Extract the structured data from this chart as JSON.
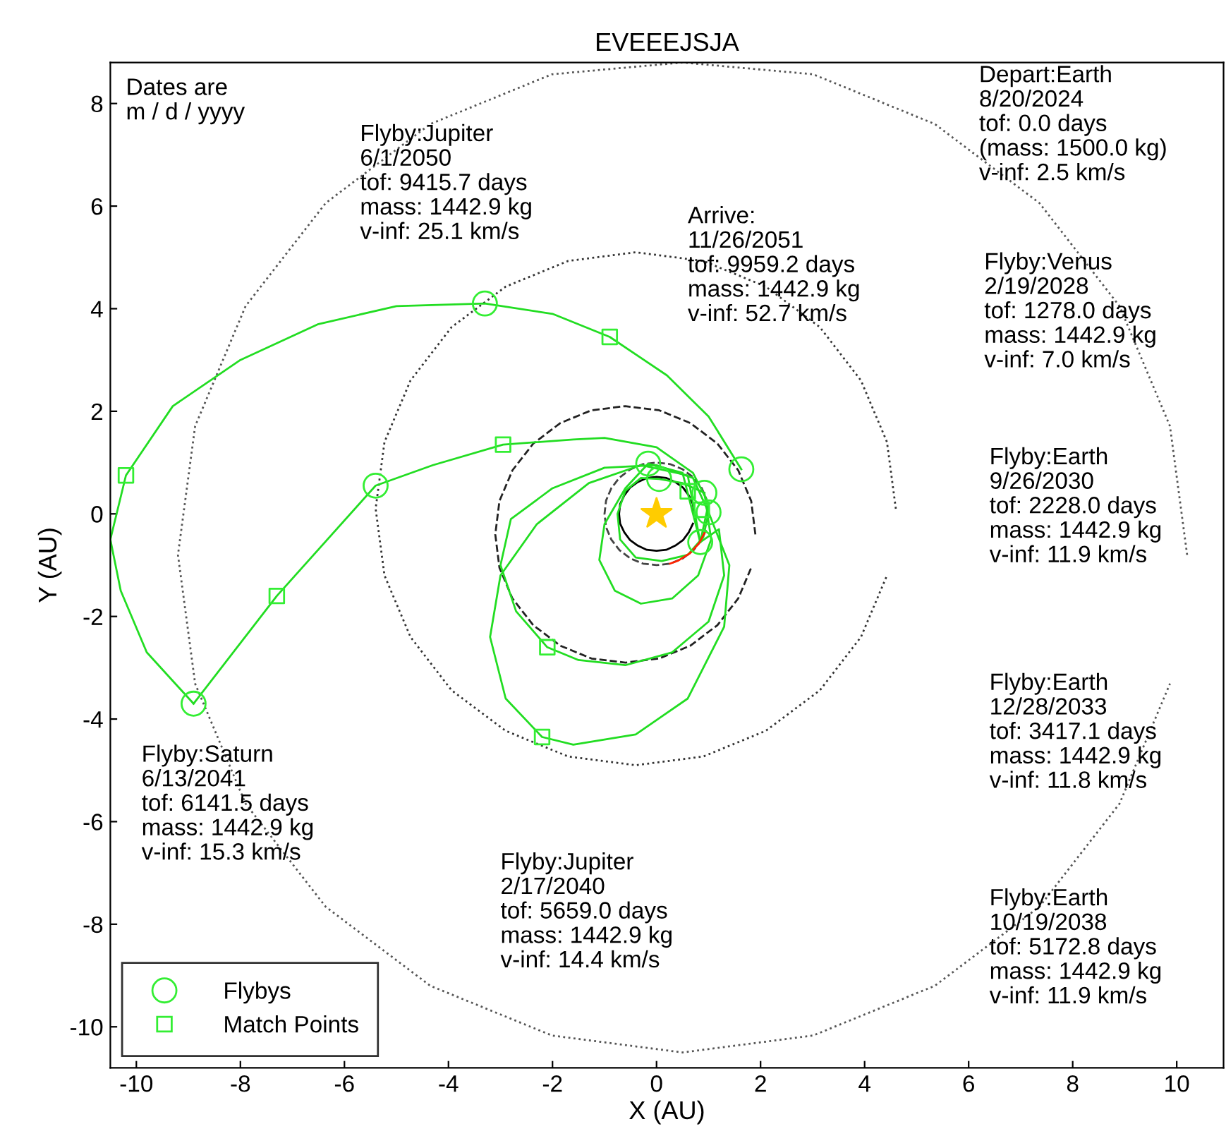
{
  "chart_data": {
    "type": "line",
    "title": "EVEEEJSJA",
    "xlabel": "X (AU)",
    "ylabel": "Y (AU)",
    "xlim": [
      -10.5,
      10.9
    ],
    "ylim": [
      -10.8,
      8.8
    ],
    "xticks": [
      -10,
      -8,
      -6,
      -4,
      -2,
      0,
      2,
      4,
      6,
      8,
      10
    ],
    "yticks": [
      -10,
      -8,
      -6,
      -4,
      -2,
      0,
      2,
      4,
      6,
      8
    ],
    "grid": false,
    "legend": "bottom left",
    "series": [
      {
        "color": "#555555",
        "line_style": "dotted",
        "x": [
          10.2,
          9.87,
          8.9,
          7.36,
          5.35,
          3.01,
          0.5,
          -2.01,
          -4.35,
          -6.36,
          -7.9,
          -8.87,
          -9.2,
          -8.87,
          -7.9,
          -6.36,
          -4.35,
          -2.01,
          0.5,
          3.01,
          5.35,
          7.36,
          8.9,
          9.87
        ],
        "values": [
          -0.8,
          1.71,
          4.05,
          6.06,
          7.6,
          8.57,
          8.8,
          8.57,
          7.6,
          6.06,
          4.05,
          1.71,
          -0.8,
          -3.31,
          -5.65,
          -7.66,
          -9.2,
          -10.17,
          -10.5,
          -10.17,
          -9.2,
          -7.66,
          -5.65,
          -3.31
        ]
      },
      {
        "color": "#333333",
        "line_style": "dotted",
        "x": [
          4.6,
          4.43,
          3.93,
          3.14,
          2.1,
          0.9,
          -0.4,
          -1.7,
          -2.9,
          -3.94,
          -4.73,
          -5.23,
          -5.4,
          -5.23,
          -4.73,
          -3.94,
          -2.9,
          -1.7,
          -0.4,
          0.9,
          2.1,
          3.14,
          3.93,
          4.43
        ],
        "values": [
          0.1,
          1.4,
          2.6,
          3.64,
          4.43,
          4.93,
          5.1,
          4.93,
          4.43,
          3.64,
          2.6,
          1.4,
          0.1,
          -1.2,
          -2.4,
          -3.44,
          -4.23,
          -4.73,
          -4.9,
          -4.73,
          -4.23,
          -3.44,
          -2.4,
          -1.2
        ]
      },
      {
        "color": "#222222",
        "line_style": "dashed",
        "x": [
          1.9,
          1.82,
          1.57,
          1.17,
          0.65,
          0.05,
          -0.6,
          -1.25,
          -1.85,
          -2.37,
          -2.77,
          -3.02,
          -3.1,
          -3.02,
          -2.77,
          -2.37,
          -1.85,
          -1.25,
          -0.6,
          0.05,
          0.65,
          1.17,
          1.57,
          1.82
        ],
        "values": [
          -0.4,
          0.25,
          0.85,
          1.37,
          1.77,
          2.02,
          2.1,
          2.02,
          1.77,
          1.37,
          0.85,
          0.25,
          -0.4,
          -1.05,
          -1.65,
          -2.17,
          -2.57,
          -2.82,
          -2.9,
          -2.82,
          -2.57,
          -2.17,
          -1.65,
          -1.05
        ]
      },
      {
        "color": "#444444",
        "line_style": "dashed",
        "x": [
          1,
          0.97,
          0.87,
          0.71,
          0.5,
          0.26,
          0,
          -0.26,
          -0.5,
          -0.71,
          -0.87,
          -0.97,
          -1,
          -0.97,
          -0.87,
          -0.71,
          -0.5,
          -0.26,
          0,
          0.26,
          0.5,
          0.71,
          0.87,
          0.97
        ],
        "values": [
          0,
          0.26,
          0.5,
          0.71,
          0.87,
          0.97,
          1,
          0.97,
          0.87,
          0.71,
          0.5,
          0.26,
          0,
          -0.26,
          -0.5,
          -0.71,
          -0.87,
          -0.97,
          -1,
          -0.97,
          -0.87,
          -0.71,
          -0.5,
          -0.26
        ]
      },
      {
        "color": "#000000",
        "line_style": "solid",
        "x": [
          0.72,
          0.7,
          0.62,
          0.51,
          0.36,
          0.19,
          0,
          -0.19,
          -0.36,
          -0.51,
          -0.62,
          -0.7,
          -0.72,
          -0.7,
          -0.62,
          -0.51,
          -0.36,
          -0.19,
          0,
          0.19,
          0.36,
          0.51,
          0.62,
          0.7
        ],
        "values": [
          0,
          0.19,
          0.36,
          0.51,
          0.62,
          0.7,
          0.72,
          0.7,
          0.62,
          0.51,
          0.36,
          0.19,
          0,
          -0.19,
          -0.36,
          -0.51,
          -0.62,
          -0.7,
          -0.72,
          -0.7,
          -0.62,
          -0.51,
          -0.36,
          -0.19
        ]
      },
      {
        "color": "#22dd22",
        "line_style": "solid",
        "x": [
          1.0,
          0.9,
          0.6,
          0.1,
          -0.4,
          -0.7,
          -0.75,
          -0.6,
          -0.3,
          0.05,
          0.5,
          0.92
        ],
        "values": [
          0.03,
          -0.45,
          -0.8,
          -0.92,
          -0.85,
          -0.5,
          0.0,
          0.45,
          0.7,
          0.68,
          0.6,
          0.41
        ]
      },
      {
        "color": "#22dd22",
        "line_style": "solid",
        "x": [
          0.92,
          1.05,
          0.8,
          0.3,
          -0.3,
          -0.8,
          -1.1,
          -1.0,
          -0.6,
          -0.16,
          0.5,
          0.84
        ],
        "values": [
          0.41,
          -0.5,
          -1.2,
          -1.65,
          -1.75,
          -1.5,
          -0.9,
          -0.2,
          0.5,
          0.98,
          0.8,
          -0.55
        ]
      },
      {
        "color": "#22dd22",
        "line_style": "solid",
        "x": [
          0.84,
          1.2,
          1.3,
          1.0,
          0.3,
          -0.6,
          -1.5,
          -2.1,
          -2.7,
          -3.0,
          -2.8,
          -2.0,
          -1.0,
          0.0,
          0.7,
          1.0
        ],
        "values": [
          -0.55,
          -0.3,
          -1.2,
          -2.1,
          -2.7,
          -2.95,
          -2.85,
          -2.6,
          -1.9,
          -1.0,
          -0.1,
          0.5,
          0.9,
          0.95,
          0.7,
          0.03
        ]
      },
      {
        "color": "#22dd22",
        "line_style": "solid",
        "x": [
          1.0,
          1.4,
          1.3,
          0.6,
          -0.4,
          -1.6,
          -2.2,
          -2.9,
          -3.2,
          -3.0,
          -2.3,
          -1.3,
          -0.3,
          0.6,
          0.84
        ],
        "values": [
          0.03,
          -1.0,
          -2.2,
          -3.6,
          -4.3,
          -4.5,
          -4.35,
          -3.6,
          -2.4,
          -1.2,
          -0.2,
          0.6,
          0.95,
          0.75,
          -0.55
        ]
      },
      {
        "color": "#22dd22",
        "line_style": "solid",
        "x": [
          0.84,
          1.0,
          0.7,
          0.0,
          -1.0,
          -1.6,
          -2.95,
          -4.3,
          -5.4,
          -7.3,
          -8.9
        ],
        "values": [
          -0.55,
          0.2,
          0.8,
          1.3,
          1.48,
          1.45,
          1.35,
          0.95,
          0.55,
          -1.6,
          -3.7
        ]
      },
      {
        "color": "#22dd22",
        "line_style": "solid",
        "x": [
          -8.9,
          -9.8,
          -10.3,
          -10.5,
          -10.2,
          -9.3,
          -8.0,
          -6.5,
          -5.0,
          -3.3,
          -2.0,
          -0.9,
          0.2,
          1.0,
          1.63
        ],
        "values": [
          -3.7,
          -2.7,
          -1.5,
          -0.5,
          0.75,
          2.1,
          3.0,
          3.7,
          4.05,
          4.1,
          3.9,
          3.45,
          2.7,
          1.9,
          0.87
        ]
      },
      {
        "color": "#ff2200",
        "line_style": "solid",
        "x": [
          0.94,
          0.82,
          0.64,
          0.42,
          0.26
        ],
        "values": [
          -0.34,
          -0.57,
          -0.77,
          -0.91,
          -0.97
        ]
      },
      {
        "type": "scatter",
        "color": "#ffcc00",
        "marker": "star",
        "x": [
          0
        ],
        "values": [
          0
        ]
      },
      {
        "type": "scatter",
        "name": "Flybys",
        "color": "#33ee33",
        "marker": "circle",
        "x": [
          1.0,
          -0.16,
          0.05,
          0.92,
          0.84,
          -5.4,
          -8.9,
          -3.3,
          1.63
        ],
        "values": [
          0.03,
          0.98,
          0.68,
          0.41,
          -0.55,
          0.55,
          -3.7,
          4.1,
          0.87
        ]
      },
      {
        "type": "scatter",
        "name": "Match Points",
        "color": "#33ee33",
        "marker": "square",
        "x": [
          -10.2,
          -7.3,
          -2.95,
          -0.9,
          -2.1,
          -2.2,
          0.6,
          0.87
        ],
        "values": [
          0.75,
          -1.6,
          1.35,
          3.45,
          -2.6,
          -4.35,
          0.44,
          0.08
        ]
      }
    ],
    "annotations": [
      "Dates are\nm / d / yyyy",
      "Flyby:Jupiter\n6/1/2050\ntof: 9415.7 days\nmass: 1442.9 kg\nv-inf: 25.1 km/s",
      "Arrive:\n11/26/2051\ntof: 9959.2 days\nmass: 1442.9 kg\nv-inf: 52.7 km/s",
      "Depart:Earth\n8/20/2024\ntof: 0.0 days\n(mass: 1500.0 kg)\nv-inf: 2.5 km/s",
      "Flyby:Venus\n2/19/2028\ntof: 1278.0 days\nmass: 1442.9 kg\nv-inf: 7.0 km/s",
      "Flyby:Earth\n9/26/2030\ntof: 2228.0 days\nmass: 1442.9 kg\nv-inf: 11.9 km/s",
      "Flyby:Earth\n12/28/2033\ntof: 3417.1 days\nmass: 1442.9 kg\nv-inf: 11.8 km/s",
      "Flyby:Earth\n10/19/2038\ntof: 5172.8 days\nmass: 1442.9 kg\nv-inf: 11.9 km/s",
      "Flyby:Saturn\n6/13/2041\ntof: 6141.5 days\nmass: 1442.9 kg\nv-inf: 15.3 km/s",
      "Flyby:Jupiter\n2/17/2040\ntof: 5659.0 days\nmass: 1442.9 kg\nv-inf: 14.4 km/s"
    ]
  }
}
